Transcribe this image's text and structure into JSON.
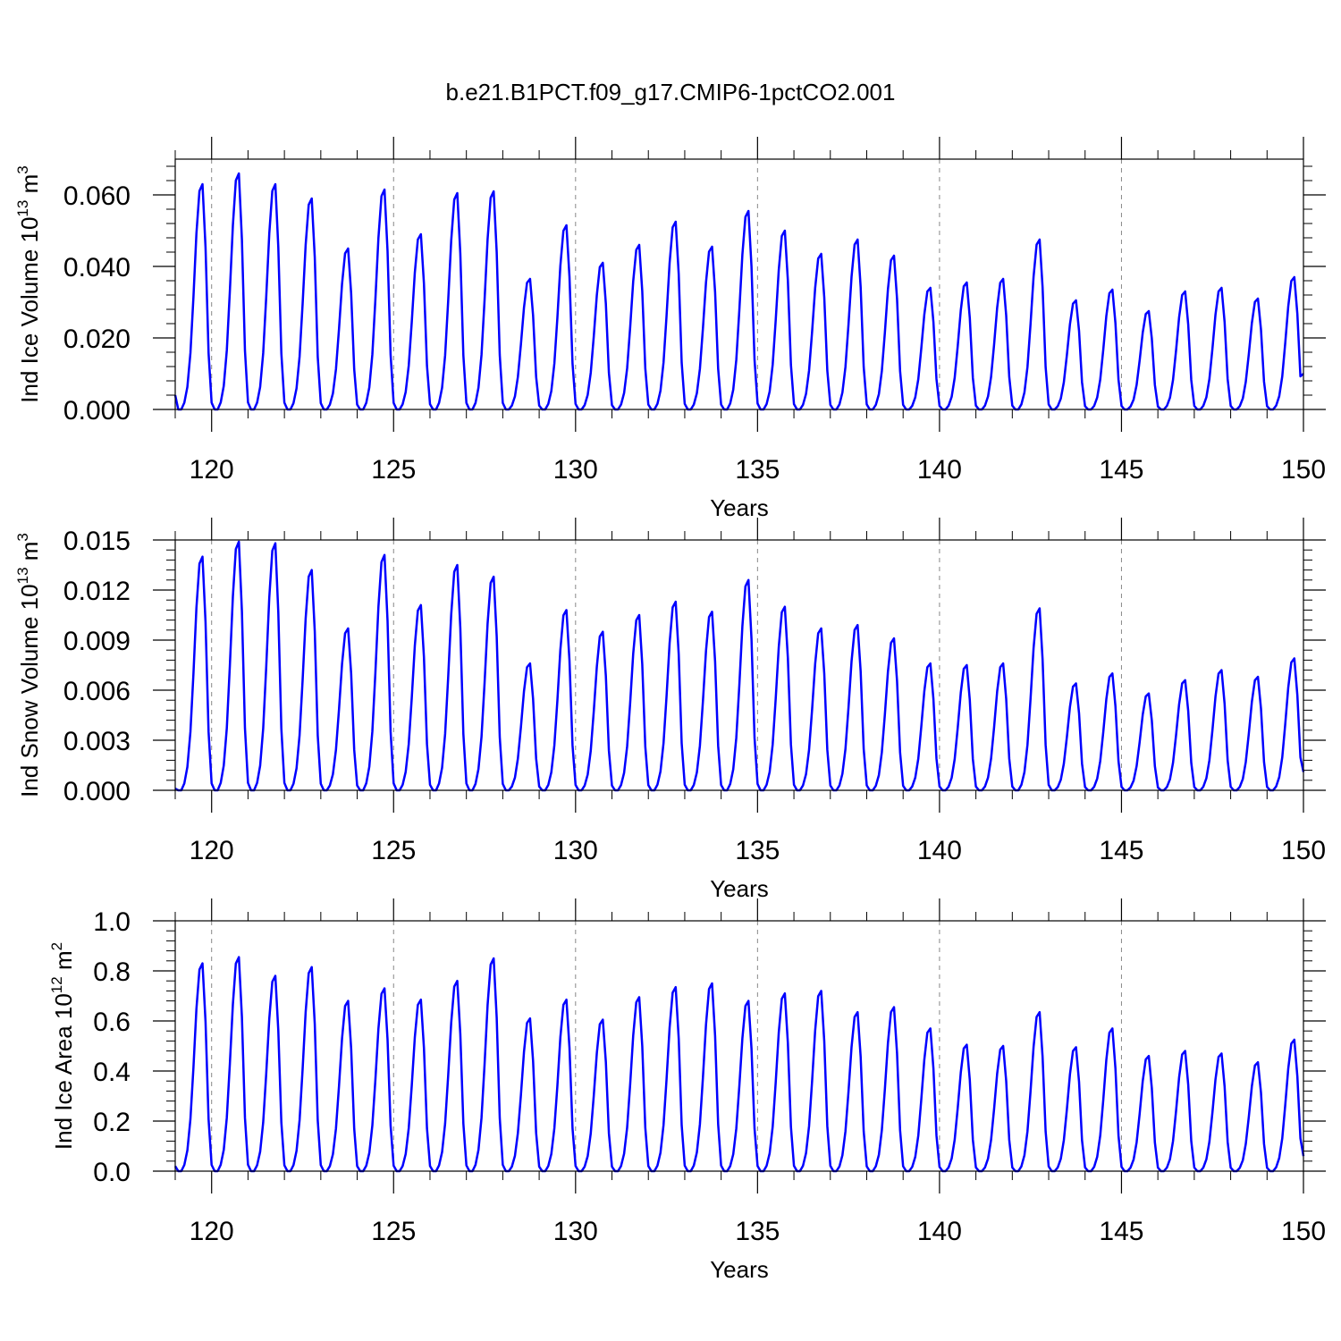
{
  "title": "b.e21.B1PCT.f09_g17.CMIP6-1pctCO2.001",
  "chart_data": [
    {
      "type": "line",
      "ylabel_main": "Ind Ice Volume 10",
      "ylabel_exp": "13",
      "ylabel_unit": " m",
      "ylabel_unit_exp": "3",
      "xlabel": "Years",
      "xlim": [
        119,
        150
      ],
      "ylim": [
        0,
        0.07
      ],
      "x_ticks": [
        "120",
        "125",
        "130",
        "135",
        "140",
        "145",
        "150"
      ],
      "y_ticks": [
        "0.000",
        "0.020",
        "0.040",
        "0.060"
      ],
      "y_tick_values": [
        0,
        0.02,
        0.04,
        0.06
      ],
      "line_color": "#0000ff",
      "grid_dashed_years": [
        120,
        125,
        130,
        135,
        140,
        145
      ],
      "start_value": 0.004,
      "end_value": 0.01,
      "annual_peaks": [
        0.063,
        0.066,
        0.063,
        0.059,
        0.045,
        0.0615,
        0.049,
        0.0605,
        0.061,
        0.0365,
        0.0515,
        0.041,
        0.046,
        0.0525,
        0.0455,
        0.0555,
        0.05,
        0.0435,
        0.0475,
        0.043,
        0.034,
        0.0355,
        0.0365,
        0.0475,
        0.0305,
        0.0335,
        0.0275,
        0.033,
        0.034,
        0.031,
        0.037
      ]
    },
    {
      "type": "line",
      "ylabel_main": "Ind Snow Volume 10",
      "ylabel_exp": "13",
      "ylabel_unit": " m",
      "ylabel_unit_exp": "3",
      "xlabel": "Years",
      "xlim": [
        119,
        150
      ],
      "ylim": [
        0,
        0.015
      ],
      "x_ticks": [
        "120",
        "125",
        "130",
        "135",
        "140",
        "145",
        "150"
      ],
      "y_ticks": [
        "0.000",
        "0.003",
        "0.006",
        "0.009",
        "0.012",
        "0.015"
      ],
      "y_tick_values": [
        0,
        0.003,
        0.006,
        0.009,
        0.012,
        0.015
      ],
      "line_color": "#0000ff",
      "grid_dashed_years": [
        120,
        125,
        130,
        135,
        140,
        145
      ],
      "start_value": 0.0001,
      "end_value": 0.0011,
      "annual_peaks": [
        0.014,
        0.0149,
        0.0148,
        0.0132,
        0.0097,
        0.0141,
        0.0111,
        0.0135,
        0.0128,
        0.0076,
        0.0108,
        0.0095,
        0.0105,
        0.0113,
        0.0107,
        0.0126,
        0.011,
        0.0097,
        0.0099,
        0.0091,
        0.0076,
        0.0075,
        0.0076,
        0.0109,
        0.0064,
        0.007,
        0.0058,
        0.0066,
        0.0072,
        0.0068,
        0.0079
      ]
    },
    {
      "type": "line",
      "ylabel_main": "Ind Ice Area 10",
      "ylabel_exp": "12",
      "ylabel_unit": " m",
      "ylabel_unit_exp": "2",
      "xlabel": "Years",
      "xlim": [
        119,
        150
      ],
      "ylim": [
        0,
        1.0
      ],
      "x_ticks": [
        "120",
        "125",
        "130",
        "135",
        "140",
        "145",
        "150"
      ],
      "y_ticks": [
        "0.0",
        "0.2",
        "0.4",
        "0.6",
        "0.8",
        "1.0"
      ],
      "y_tick_values": [
        0,
        0.2,
        0.4,
        0.6,
        0.8,
        1.0
      ],
      "line_color": "#0000ff",
      "grid_dashed_years": [
        120,
        125,
        130,
        135,
        140,
        145
      ],
      "start_value": 0.02,
      "end_value": 0.06,
      "annual_peaks": [
        0.83,
        0.855,
        0.78,
        0.815,
        0.68,
        0.73,
        0.685,
        0.76,
        0.85,
        0.61,
        0.685,
        0.605,
        0.695,
        0.735,
        0.75,
        0.68,
        0.71,
        0.72,
        0.635,
        0.655,
        0.57,
        0.505,
        0.5,
        0.635,
        0.495,
        0.57,
        0.46,
        0.48,
        0.47,
        0.435,
        0.525
      ]
    }
  ]
}
